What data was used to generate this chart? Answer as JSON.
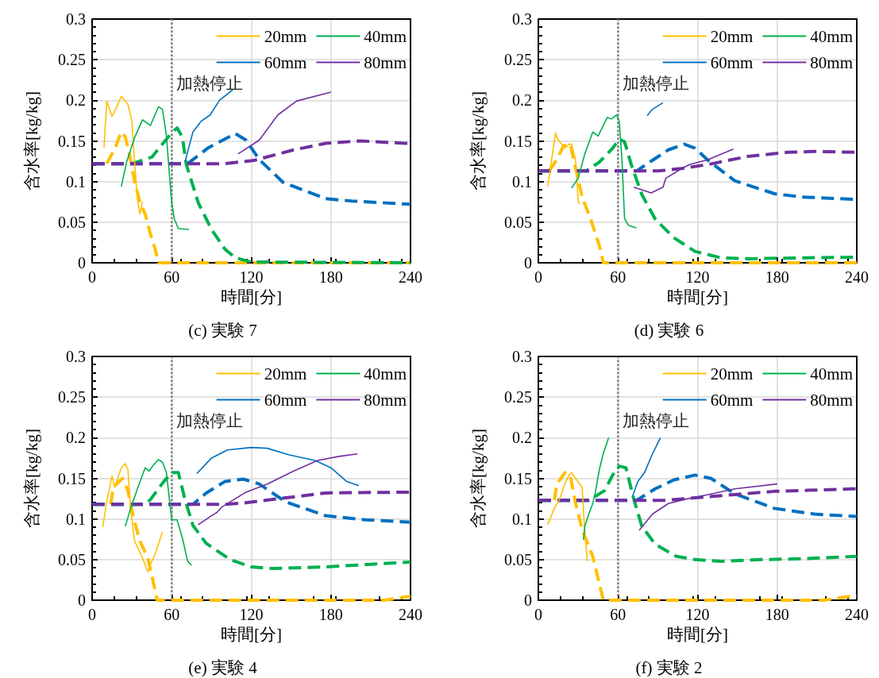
{
  "chart_data": [
    {
      "type": "line",
      "title": "(c) 実験 7",
      "xlabel": "時間[分]",
      "ylabel": "含水率[kg/kg]",
      "xlim": [
        0,
        240
      ],
      "xticks": [
        0,
        60,
        120,
        180,
        240
      ],
      "ylim": [
        0,
        0.3
      ],
      "yticks": [
        0,
        0.05,
        0.1,
        0.15,
        0.2,
        0.25,
        0.3
      ],
      "grid": true,
      "legend": "top right",
      "marker": "none",
      "ref_lines": [
        {
          "axis": "x",
          "value": 60,
          "label": "加熱停止",
          "color": "#808080",
          "line_style": "dotted"
        }
      ],
      "series": [
        {
          "name": "20mm",
          "color": "#ffc000",
          "line_style": "solid",
          "x": [
            9,
            11,
            13,
            15,
            18,
            22,
            27,
            30,
            32,
            34,
            36,
            38
          ],
          "values": [
            0.142,
            0.199,
            0.19,
            0.18,
            0.19,
            0.205,
            0.195,
            0.175,
            0.125,
            0.08,
            0.06,
            0.075
          ]
        },
        {
          "name": "40mm",
          "color": "#00b050",
          "line_style": "solid",
          "x": [
            22,
            26,
            32,
            38,
            44,
            50,
            53,
            56,
            58,
            60,
            62,
            65,
            73
          ],
          "values": [
            0.094,
            0.124,
            0.154,
            0.176,
            0.169,
            0.192,
            0.189,
            0.157,
            0.114,
            0.074,
            0.054,
            0.042,
            0.041
          ]
        },
        {
          "name": "60mm",
          "color": "#0070c0",
          "line_style": "solid",
          "x": [
            70,
            76,
            82,
            89,
            96,
            106
          ],
          "values": [
            0.124,
            0.161,
            0.174,
            0.182,
            0.2,
            0.213
          ]
        },
        {
          "name": "80mm",
          "color": "#7030a0",
          "line_style": "solid",
          "x": [
            110,
            126,
            140,
            154,
            180
          ],
          "values": [
            0.134,
            0.151,
            0.182,
            0.199,
            0.21
          ]
        },
        {
          "color": "#ffc000",
          "line_style": "dashed",
          "x": [
            11,
            17,
            22,
            25,
            28,
            32,
            36,
            40,
            44,
            47,
            50,
            240
          ],
          "values": [
            0.122,
            0.14,
            0.161,
            0.155,
            0.135,
            0.1,
            0.075,
            0.06,
            0.035,
            0.02,
            0,
            0
          ]
        },
        {
          "color": "#00b050",
          "line_style": "dashed",
          "x": [
            0,
            30,
            45,
            55,
            60,
            64,
            68,
            71,
            80,
            90,
            100,
            108,
            120,
            240
          ],
          "values": [
            0.122,
            0.122,
            0.13,
            0.15,
            0.16,
            0.166,
            0.155,
            0.121,
            0.074,
            0.041,
            0.017,
            0.006,
            0.001,
            0
          ]
        },
        {
          "color": "#0070c0",
          "line_style": "dashed",
          "x": [
            0,
            72,
            88,
            108,
            116,
            126,
            144,
            176,
            196,
            240
          ],
          "values": [
            0.122,
            0.122,
            0.142,
            0.159,
            0.151,
            0.127,
            0.099,
            0.079,
            0.076,
            0.072
          ]
        },
        {
          "color": "#7030a0",
          "line_style": "dashed",
          "x": [
            0,
            100,
            122,
            152,
            176,
            202,
            236,
            240
          ],
          "values": [
            0.122,
            0.122,
            0.126,
            0.139,
            0.147,
            0.15,
            0.147,
            0.147
          ]
        }
      ]
    },
    {
      "type": "line",
      "title": "(d) 実験 6",
      "xlabel": "時間[分]",
      "ylabel": "含水率[kg/kg]",
      "xlim": [
        0,
        240
      ],
      "xticks": [
        0,
        60,
        120,
        180,
        240
      ],
      "ylim": [
        0,
        0.3
      ],
      "yticks": [
        0,
        0.05,
        0.1,
        0.15,
        0.2,
        0.25,
        0.3
      ],
      "grid": true,
      "legend": "top right",
      "marker": "none",
      "ref_lines": [
        {
          "axis": "x",
          "value": 60,
          "label": "加熱停止",
          "color": "#808080",
          "line_style": "dotted"
        }
      ],
      "series": [
        {
          "name": "20mm",
          "color": "#ffc000",
          "line_style": "solid",
          "x": [
            7,
            10,
            13,
            14,
            17,
            20,
            23,
            25,
            28,
            30,
            31
          ],
          "values": [
            0.094,
            0.127,
            0.16,
            0.154,
            0.147,
            0.141,
            0.146,
            0.146,
            0.127,
            0.077,
            0.072
          ]
        },
        {
          "name": "40mm",
          "color": "#00b050",
          "line_style": "solid",
          "x": [
            25,
            30,
            35,
            41,
            45,
            52,
            55,
            59,
            61,
            63,
            65,
            68,
            74
          ],
          "values": [
            0.092,
            0.104,
            0.134,
            0.161,
            0.156,
            0.179,
            0.177,
            0.182,
            0.174,
            0.127,
            0.054,
            0.046,
            0.043
          ]
        },
        {
          "name": "60mm",
          "color": "#0070c0",
          "line_style": "solid",
          "x": [
            82,
            86,
            94
          ],
          "values": [
            0.181,
            0.189,
            0.197
          ]
        },
        {
          "name": "80mm",
          "color": "#7030a0",
          "line_style": "solid",
          "x": [
            72,
            85,
            94,
            96,
            108,
            114,
            128,
            147
          ],
          "values": [
            0.093,
            0.086,
            0.093,
            0.104,
            0.116,
            0.121,
            0.127,
            0.14
          ]
        },
        {
          "color": "#ffc000",
          "line_style": "dashed",
          "x": [
            8,
            14,
            19,
            24,
            28,
            33,
            40,
            46,
            49,
            240
          ],
          "values": [
            0.113,
            0.127,
            0.144,
            0.146,
            0.117,
            0.081,
            0.051,
            0.021,
            0,
            0
          ]
        },
        {
          "color": "#00b050",
          "line_style": "dashed",
          "x": [
            0,
            36,
            46,
            56,
            61,
            65,
            70,
            78,
            88,
            102,
            118,
            138,
            158,
            240
          ],
          "values": [
            0.113,
            0.113,
            0.124,
            0.141,
            0.152,
            0.149,
            0.121,
            0.084,
            0.054,
            0.031,
            0.014,
            0.006,
            0.005,
            0.007
          ]
        },
        {
          "color": "#0070c0",
          "line_style": "dashed",
          "x": [
            0,
            74,
            84,
            98,
            110,
            118,
            128,
            148,
            178,
            198,
            240
          ],
          "values": [
            0.113,
            0.113,
            0.124,
            0.139,
            0.146,
            0.141,
            0.126,
            0.101,
            0.085,
            0.081,
            0.078
          ]
        },
        {
          "color": "#7030a0",
          "line_style": "dashed",
          "x": [
            0,
            90,
            108,
            128,
            158,
            188,
            208,
            240
          ],
          "values": [
            0.113,
            0.113,
            0.116,
            0.121,
            0.131,
            0.136,
            0.137,
            0.136
          ]
        }
      ]
    },
    {
      "type": "line",
      "title": "(e) 実験 4",
      "xlabel": "時間[分]",
      "ylabel": "含水率[kg/kg]",
      "xlim": [
        0,
        240
      ],
      "xticks": [
        0,
        60,
        120,
        180,
        240
      ],
      "ylim": [
        0,
        0.3
      ],
      "yticks": [
        0,
        0.05,
        0.1,
        0.15,
        0.2,
        0.25,
        0.3
      ],
      "grid": true,
      "legend": "top right",
      "marker": "none",
      "ref_lines": [
        {
          "axis": "x",
          "value": 60,
          "label": "加熱停止",
          "color": "#808080",
          "line_style": "dotted"
        }
      ],
      "series": [
        {
          "name": "20mm",
          "color": "#ffc000",
          "line_style": "solid",
          "x": [
            8,
            11,
            15,
            17,
            22,
            25,
            27,
            29,
            32,
            38,
            42,
            44,
            48,
            53
          ],
          "values": [
            0.09,
            0.121,
            0.153,
            0.139,
            0.163,
            0.168,
            0.161,
            0.113,
            0.073,
            0.052,
            0.035,
            0.044,
            0.059,
            0.084
          ]
        },
        {
          "name": "40mm",
          "color": "#00b050",
          "line_style": "solid",
          "x": [
            25,
            29,
            35,
            40,
            43,
            46,
            50,
            53,
            56,
            60,
            64,
            68,
            72,
            75
          ],
          "values": [
            0.091,
            0.113,
            0.141,
            0.163,
            0.159,
            0.166,
            0.173,
            0.17,
            0.157,
            0.099,
            0.099,
            0.077,
            0.048,
            0.043
          ]
        },
        {
          "name": "60mm",
          "color": "#0070c0",
          "line_style": "solid",
          "x": [
            79,
            90,
            102,
            120,
            132,
            148,
            168,
            180,
            192,
            201
          ],
          "values": [
            0.156,
            0.175,
            0.185,
            0.188,
            0.187,
            0.179,
            0.172,
            0.163,
            0.146,
            0.141
          ]
        },
        {
          "name": "80mm",
          "color": "#7030a0",
          "line_style": "solid",
          "x": [
            80,
            90,
            94,
            98,
            116,
            132,
            152,
            170,
            186,
            200
          ],
          "values": [
            0.093,
            0.104,
            0.108,
            0.115,
            0.133,
            0.143,
            0.159,
            0.172,
            0.177,
            0.18
          ]
        },
        {
          "color": "#ffc000",
          "line_style": "dashed",
          "x": [
            14,
            16,
            23,
            27,
            31,
            36,
            42,
            46,
            49,
            220,
            240
          ],
          "values": [
            0.118,
            0.139,
            0.15,
            0.135,
            0.103,
            0.073,
            0.052,
            0.023,
            0,
            0,
            0.005
          ]
        },
        {
          "color": "#00b050",
          "line_style": "dashed",
          "x": [
            0,
            40,
            44,
            54,
            60,
            65,
            70,
            76,
            86,
            104,
            120,
            136,
            176,
            240
          ],
          "values": [
            0.118,
            0.118,
            0.124,
            0.146,
            0.157,
            0.157,
            0.124,
            0.092,
            0.07,
            0.05,
            0.041,
            0.039,
            0.041,
            0.047
          ]
        },
        {
          "color": "#0070c0",
          "line_style": "dashed",
          "x": [
            0,
            76,
            86,
            100,
            114,
            126,
            146,
            176,
            206,
            240
          ],
          "values": [
            0.118,
            0.118,
            0.132,
            0.146,
            0.149,
            0.143,
            0.121,
            0.104,
            0.099,
            0.096
          ]
        },
        {
          "color": "#7030a0",
          "line_style": "dashed",
          "x": [
            0,
            100,
            116,
            146,
            176,
            240
          ],
          "values": [
            0.118,
            0.118,
            0.12,
            0.126,
            0.132,
            0.133
          ]
        }
      ]
    },
    {
      "type": "line",
      "title": "(f) 実験 2",
      "xlabel": "時間[分]",
      "ylabel": "含水率[kg/kg]",
      "xlim": [
        0,
        240
      ],
      "xticks": [
        0,
        60,
        120,
        180,
        240
      ],
      "ylim": [
        0,
        0.3
      ],
      "yticks": [
        0,
        0.05,
        0.1,
        0.15,
        0.2,
        0.25,
        0.3
      ],
      "grid": true,
      "legend": "top right",
      "marker": "none",
      "ref_lines": [
        {
          "axis": "x",
          "value": 60,
          "label": "加熱停止",
          "color": "#808080",
          "line_style": "dotted"
        }
      ],
      "series": [
        {
          "name": "20mm",
          "color": "#ffc000",
          "line_style": "solid",
          "x": [
            7,
            12,
            16,
            19,
            23,
            25,
            28,
            33,
            35,
            37
          ],
          "values": [
            0.093,
            0.113,
            0.124,
            0.139,
            0.154,
            0.157,
            0.15,
            0.139,
            0.083,
            0.048
          ]
        },
        {
          "name": "40mm",
          "color": "#00b050",
          "line_style": "solid",
          "x": [
            34,
            35,
            38,
            41,
            43,
            46,
            49,
            53
          ],
          "values": [
            0.074,
            0.091,
            0.106,
            0.119,
            0.133,
            0.161,
            0.181,
            0.2
          ]
        },
        {
          "name": "60mm",
          "color": "#0070c0",
          "line_style": "solid",
          "x": [
            71,
            75,
            80,
            86,
            92
          ],
          "values": [
            0.128,
            0.146,
            0.157,
            0.18,
            0.2
          ]
        },
        {
          "name": "80mm",
          "color": "#7030a0",
          "line_style": "solid",
          "x": [
            76,
            86,
            98,
            110,
            128,
            148,
            180
          ],
          "values": [
            0.086,
            0.106,
            0.119,
            0.124,
            0.13,
            0.137,
            0.143
          ]
        },
        {
          "color": "#ffc000",
          "line_style": "dashed",
          "x": [
            12,
            14,
            20,
            24,
            28,
            33,
            41,
            46,
            49,
            215,
            236,
            240
          ],
          "values": [
            0.123,
            0.143,
            0.157,
            0.154,
            0.12,
            0.087,
            0.054,
            0.02,
            0,
            0,
            0.005,
            0.005
          ]
        },
        {
          "color": "#00b050",
          "line_style": "dashed",
          "x": [
            0,
            38,
            50,
            56,
            61,
            66,
            72,
            78,
            88,
            104,
            118,
            138,
            168,
            198,
            240
          ],
          "values": [
            0.123,
            0.123,
            0.135,
            0.154,
            0.165,
            0.163,
            0.124,
            0.091,
            0.069,
            0.054,
            0.05,
            0.048,
            0.05,
            0.051,
            0.054
          ]
        },
        {
          "color": "#0070c0",
          "line_style": "dashed",
          "x": [
            0,
            74,
            88,
            102,
            118,
            130,
            148,
            178,
            208,
            240
          ],
          "values": [
            0.123,
            0.123,
            0.137,
            0.148,
            0.154,
            0.15,
            0.131,
            0.113,
            0.106,
            0.103
          ]
        },
        {
          "color": "#7030a0",
          "line_style": "dashed",
          "x": [
            0,
            96,
            118,
            148,
            178,
            236,
            240
          ],
          "values": [
            0.123,
            0.123,
            0.126,
            0.13,
            0.134,
            0.137,
            0.137
          ]
        }
      ]
    }
  ]
}
